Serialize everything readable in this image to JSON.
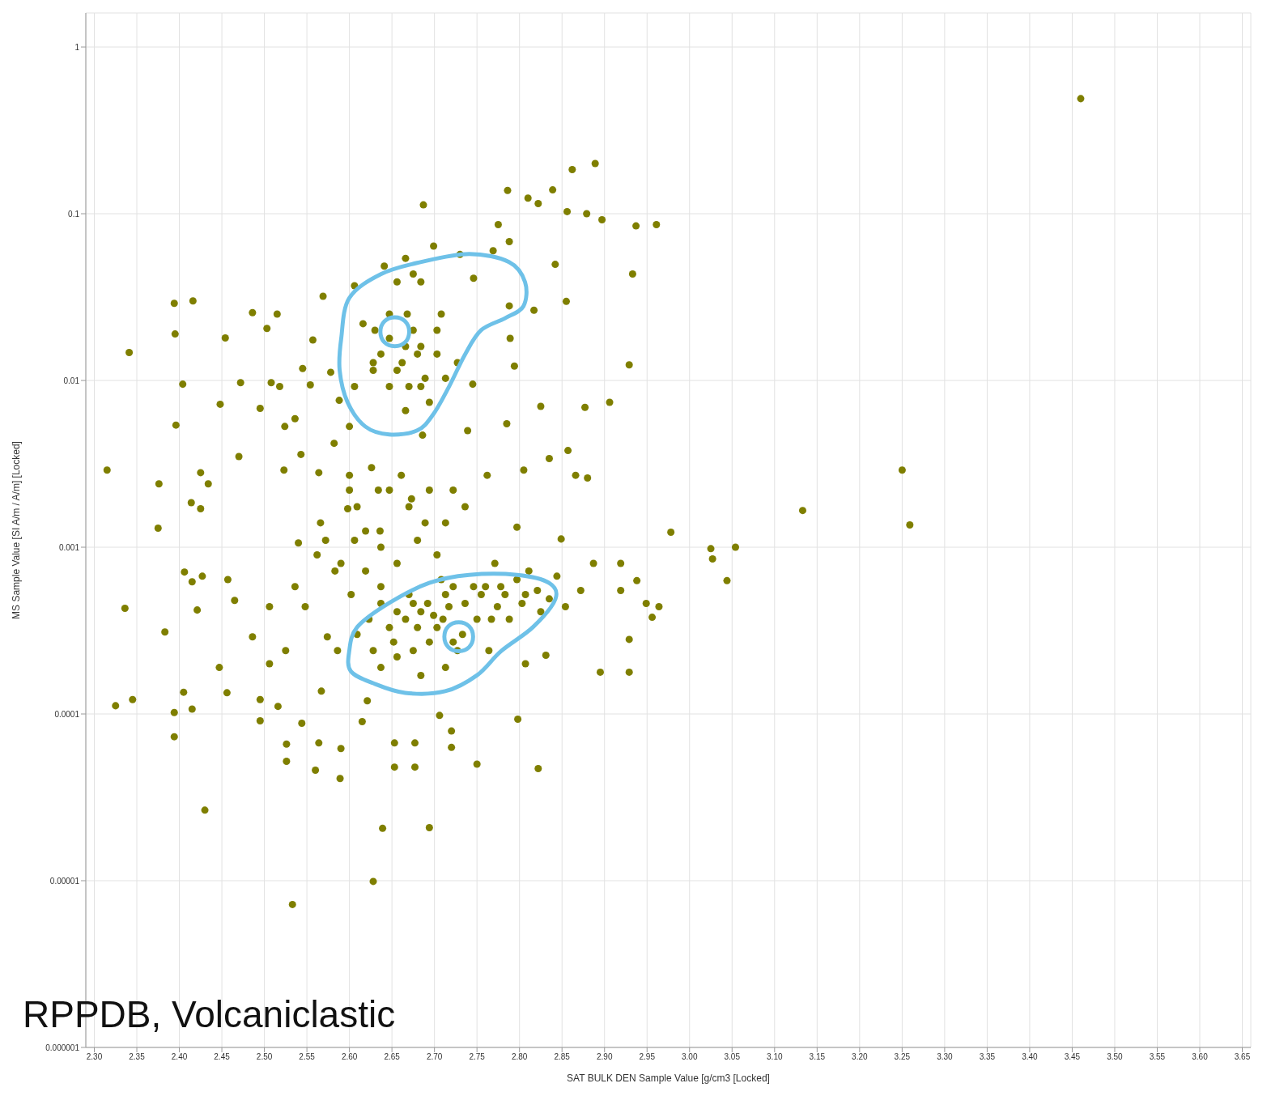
{
  "chart_data": {
    "type": "scatter",
    "xlabel": "SAT BULK DEN Sample Value [g/cm3 [Locked]",
    "ylabel": "MS Sample Value [SI A/m / A/m] [Locked]",
    "annotations": [
      "RPPDB, Volcaniclastic"
    ],
    "log": "y",
    "grid": true,
    "marker": "circle",
    "xlim": [
      2.29,
      3.66
    ],
    "ylim": [
      1e-06,
      1.6
    ],
    "xticks": [
      {
        "value": 2.3,
        "label": "2.30"
      },
      {
        "value": 2.35,
        "label": "2.35"
      },
      {
        "value": 2.4,
        "label": "2.40"
      },
      {
        "value": 2.45,
        "label": "2.45"
      },
      {
        "value": 2.5,
        "label": "2.50"
      },
      {
        "value": 2.55,
        "label": "2.55"
      },
      {
        "value": 2.6,
        "label": "2.60"
      },
      {
        "value": 2.65,
        "label": "2.65"
      },
      {
        "value": 2.7,
        "label": "2.70"
      },
      {
        "value": 2.75,
        "label": "2.75"
      },
      {
        "value": 2.8,
        "label": "2.80"
      },
      {
        "value": 2.85,
        "label": "2.85"
      },
      {
        "value": 2.9,
        "label": "2.90"
      },
      {
        "value": 2.95,
        "label": "2.95"
      },
      {
        "value": 3.0,
        "label": "3.00"
      },
      {
        "value": 3.05,
        "label": "3.05"
      },
      {
        "value": 3.1,
        "label": "3.10"
      },
      {
        "value": 3.15,
        "label": "3.15"
      },
      {
        "value": 3.2,
        "label": "3.20"
      },
      {
        "value": 3.25,
        "label": "3.25"
      },
      {
        "value": 3.3,
        "label": "3.30"
      },
      {
        "value": 3.35,
        "label": "3.35"
      },
      {
        "value": 3.4,
        "label": "3.40"
      },
      {
        "value": 3.45,
        "label": "3.45"
      },
      {
        "value": 3.5,
        "label": "3.50"
      },
      {
        "value": 3.55,
        "label": "3.55"
      },
      {
        "value": 3.6,
        "label": "3.60"
      },
      {
        "value": 3.65,
        "label": "3.65"
      }
    ],
    "yticks": [
      {
        "value": 1e-06,
        "label": "0.000001"
      },
      {
        "value": 1e-05,
        "label": "0.00001"
      },
      0.0001,
      0.001,
      0.01,
      0.1,
      1
    ],
    "series": [
      {
        "color": "#7f7f00",
        "x": [
          3.46,
          2.315,
          2.325,
          2.345,
          2.336,
          2.341,
          2.376,
          2.375,
          2.383,
          2.394,
          2.395,
          2.396,
          2.404,
          2.416,
          2.394,
          2.394,
          2.405,
          2.415,
          2.406,
          2.415,
          2.427,
          2.421,
          2.414,
          2.425,
          2.425,
          2.434,
          2.43,
          2.448,
          2.454,
          2.457,
          2.465,
          2.447,
          2.456,
          2.47,
          2.472,
          2.486,
          2.495,
          2.486,
          2.495,
          2.495,
          2.506,
          2.506,
          2.516,
          2.525,
          2.526,
          2.526,
          2.533,
          2.503,
          2.515,
          2.508,
          2.518,
          2.524,
          2.523,
          2.536,
          2.543,
          2.545,
          2.544,
          2.548,
          2.536,
          2.54,
          2.554,
          2.557,
          2.569,
          2.564,
          2.566,
          2.564,
          2.56,
          2.567,
          2.574,
          2.578,
          2.588,
          2.582,
          2.583,
          2.586,
          2.59,
          2.589,
          2.6,
          2.606,
          2.6,
          2.598,
          2.606,
          2.602,
          2.615,
          2.621,
          2.606,
          2.616,
          2.628,
          2.63,
          2.626,
          2.634,
          2.636,
          2.628,
          2.639,
          2.641,
          2.647,
          2.653,
          2.653,
          2.666,
          2.656,
          2.652,
          2.662,
          2.668,
          2.675,
          2.673,
          2.677,
          2.677,
          2.687,
          2.684,
          2.684,
          2.686,
          2.689,
          2.684,
          2.694,
          2.699,
          2.703,
          2.706,
          2.708,
          2.71,
          2.72,
          2.72,
          2.73,
          2.727,
          2.733,
          2.739,
          2.736,
          2.75,
          2.746,
          2.745,
          2.76,
          2.762,
          2.767,
          2.775,
          2.769,
          2.771,
          2.786,
          2.788,
          2.788,
          2.785,
          2.783,
          2.789,
          2.794,
          2.797,
          2.798,
          2.803,
          2.805,
          2.807,
          2.81,
          2.822,
          2.822,
          2.817,
          2.825,
          2.831,
          2.835,
          2.839,
          2.842,
          2.844,
          2.849,
          2.854,
          2.855,
          2.856,
          2.857,
          2.862,
          2.866,
          2.872,
          2.877,
          2.879,
          2.88,
          2.889,
          2.887,
          2.897,
          2.895,
          2.906,
          2.919,
          2.919,
          2.929,
          2.929,
          2.933,
          2.929,
          2.937,
          2.938,
          2.949,
          2.956,
          2.961,
          2.964,
          2.978,
          3.025,
          3.027,
          3.054,
          3.044,
          3.133,
          3.25,
          3.259,
          2.609,
          2.623,
          2.637,
          2.647,
          2.656,
          2.666,
          2.67,
          2.675,
          2.68,
          2.684,
          2.692,
          2.699,
          2.703,
          2.713,
          2.717,
          2.722,
          2.727,
          2.736,
          2.746,
          2.75,
          2.755,
          2.764,
          2.774,
          2.778,
          2.788,
          2.797,
          2.807,
          2.811,
          2.821,
          2.825,
          2.835,
          2.628,
          2.637,
          2.656,
          2.675,
          2.694,
          2.713,
          2.722,
          2.628,
          2.637,
          2.647,
          2.656,
          2.666,
          2.67,
          2.68,
          2.684,
          2.689,
          2.694,
          2.703,
          2.708,
          2.713,
          2.666,
          2.656,
          2.675,
          2.647,
          2.6,
          2.609,
          2.619,
          2.637,
          2.647,
          2.661,
          2.67,
          2.68,
          2.694,
          2.703,
          2.713,
          2.722,
          2.619,
          2.637,
          2.562,
          2.572,
          2.59
        ],
        "values": [
          0.49,
          0.0029,
          0.000112,
          0.000122,
          0.00043,
          0.0147,
          0.0024,
          0.0013,
          0.00031,
          0.029,
          0.019,
          0.0054,
          0.0095,
          0.03,
          7.3e-05,
          0.000102,
          0.000135,
          0.000107,
          0.00071,
          0.00062,
          0.00067,
          0.00042,
          0.00185,
          0.0017,
          0.0028,
          0.0024,
          2.65e-05,
          0.0072,
          0.018,
          0.00064,
          0.00048,
          0.00019,
          0.000134,
          0.0035,
          0.0097,
          0.0255,
          0.0068,
          0.00029,
          0.000122,
          9.1e-05,
          0.00044,
          0.0002,
          0.000111,
          0.00024,
          6.6e-05,
          5.2e-05,
          7.2e-06,
          0.0205,
          0.025,
          0.0097,
          0.0092,
          0.0053,
          0.0029,
          0.0059,
          0.0036,
          0.0118,
          8.8e-05,
          0.00044,
          0.00058,
          0.00106,
          0.0094,
          0.0175,
          0.032,
          0.0028,
          0.0014,
          6.7e-05,
          4.6e-05,
          0.000137,
          0.00029,
          0.0112,
          0.0076,
          0.0042,
          0.00072,
          0.00024,
          6.2e-05,
          4.1e-05,
          0.0053,
          0.0092,
          0.0027,
          0.0017,
          0.0011,
          0.00052,
          9e-05,
          0.00012,
          0.037,
          0.0219,
          0.0128,
          0.02,
          0.003,
          0.0022,
          0.00125,
          9.9e-06,
          2.06e-05,
          0.0485,
          0.0092,
          6.7e-05,
          4.8e-05,
          0.054,
          0.0008,
          0.00027,
          0.0128,
          0.025,
          0.02,
          0.00195,
          6.7e-05,
          4.8e-05,
          0.113,
          0.039,
          0.0092,
          0.0047,
          0.0014,
          0.00017,
          2.08e-05,
          0.064,
          0.02,
          9.8e-05,
          0.00064,
          0.00037,
          7.9e-05,
          6.3e-05,
          0.057,
          0.0128,
          0.0003,
          0.005,
          0.00175,
          5e-05,
          0.041,
          0.0095,
          0.00058,
          0.0027,
          0.00037,
          0.086,
          0.06,
          0.0008,
          0.138,
          0.068,
          0.028,
          0.0055,
          0.00052,
          0.0179,
          0.0122,
          0.00132,
          9.3e-05,
          0.00046,
          0.0029,
          0.0002,
          0.124,
          0.115,
          4.7e-05,
          0.0264,
          0.007,
          0.000225,
          0.0034,
          0.139,
          0.0497,
          0.00067,
          0.00112,
          0.00044,
          0.0298,
          0.103,
          0.0038,
          0.184,
          0.0027,
          0.00055,
          0.0069,
          0.1,
          0.0026,
          0.2,
          0.0008,
          0.092,
          0.000178,
          0.0074,
          0.0008,
          0.00055,
          0.000178,
          0.00028,
          0.0435,
          0.0124,
          0.0845,
          0.00063,
          0.00046,
          0.00038,
          0.086,
          0.00044,
          0.00123,
          0.00098,
          0.00085,
          0.001,
          0.00063,
          0.00166,
          0.0029,
          0.00136,
          0.0003,
          0.00037,
          0.00046,
          0.00033,
          0.00041,
          0.00037,
          0.00052,
          0.00046,
          0.00033,
          0.00041,
          0.00046,
          0.00039,
          0.00033,
          0.00052,
          0.00044,
          0.00058,
          0.00024,
          0.00046,
          0.00058,
          0.00037,
          0.00052,
          0.00024,
          0.00044,
          0.00058,
          0.00037,
          0.00064,
          0.00052,
          0.00072,
          0.00055,
          0.00041,
          0.00049,
          0.00024,
          0.00019,
          0.00022,
          0.00024,
          0.00027,
          0.00019,
          0.00027,
          0.0115,
          0.0144,
          0.0179,
          0.0115,
          0.016,
          0.0092,
          0.0144,
          0.016,
          0.0103,
          0.0074,
          0.0144,
          0.025,
          0.0103,
          0.0066,
          0.039,
          0.0435,
          0.025,
          0.0022,
          0.00175,
          0.00125,
          0.001,
          0.0022,
          0.0027,
          0.00175,
          0.0011,
          0.0022,
          0.0009,
          0.0014,
          0.0022,
          0.00072,
          0.00058,
          0.0009,
          0.0011,
          0.0008
        ]
      }
    ]
  }
}
